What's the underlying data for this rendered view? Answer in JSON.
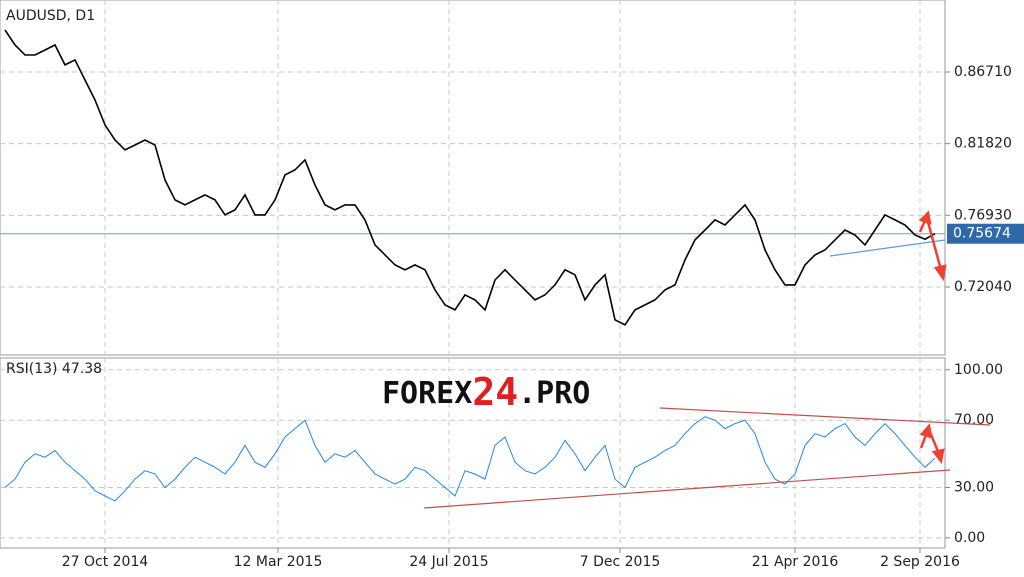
{
  "chart_data": [
    {
      "type": "line",
      "title": "AUDUSD, D1",
      "color": "#000000",
      "grid": true,
      "xlim": [
        -0.5,
        94
      ],
      "ylim": [
        0.674,
        0.9162
      ],
      "yticks": [
        {
          "value": 0.8671,
          "label": "0.86710"
        },
        {
          "value": 0.8182,
          "label": "0.81820"
        },
        {
          "value": 0.7693,
          "label": "0.76930"
        },
        {
          "value": 0.7204,
          "label": "0.72040"
        }
      ],
      "current_price": 0.75674,
      "values": [
        0.8957,
        0.8855,
        0.8787,
        0.8787,
        0.8821,
        0.8855,
        0.8719,
        0.8753,
        0.8616,
        0.848,
        0.831,
        0.8207,
        0.8139,
        0.8173,
        0.8207,
        0.8173,
        0.7934,
        0.7798,
        0.7764,
        0.7798,
        0.7832,
        0.7798,
        0.7696,
        0.773,
        0.7832,
        0.7696,
        0.7696,
        0.7798,
        0.7969,
        0.8003,
        0.8071,
        0.79,
        0.7764,
        0.773,
        0.7764,
        0.7764,
        0.7662,
        0.7491,
        0.7423,
        0.7355,
        0.7321,
        0.7355,
        0.7321,
        0.7184,
        0.7082,
        0.7048,
        0.715,
        0.7116,
        0.7048,
        0.7252,
        0.7321,
        0.7252,
        0.7184,
        0.7116,
        0.715,
        0.7218,
        0.7321,
        0.7287,
        0.7116,
        0.7218,
        0.7287,
        0.698,
        0.6946,
        0.7048,
        0.7082,
        0.7116,
        0.7184,
        0.7218,
        0.7389,
        0.7525,
        0.7593,
        0.7662,
        0.7627,
        0.7696,
        0.7764,
        0.7662,
        0.7457,
        0.7321,
        0.7218,
        0.7218,
        0.7355,
        0.7423,
        0.7457,
        0.7525,
        0.7593,
        0.7559,
        0.7491,
        0.7593,
        0.7696,
        0.7662,
        0.7627,
        0.7559,
        0.753,
        0.75674
      ]
    },
    {
      "type": "line",
      "title": "RSI(13) 47.38",
      "color": "#1e88e5",
      "grid": true,
      "xlim": [
        -0.5,
        94
      ],
      "ylim": [
        -6,
        107
      ],
      "yticks": [
        {
          "value": 100,
          "label": "100.00"
        },
        {
          "value": 70,
          "label": "70.00"
        },
        {
          "value": 30,
          "label": "30.00"
        },
        {
          "value": 0,
          "label": "0.00"
        }
      ],
      "xticks": [
        {
          "value": 10,
          "label": "27 Oct 2014"
        },
        {
          "value": 27.3,
          "label": "12 Mar 2015"
        },
        {
          "value": 44.4,
          "label": "24 Jul 2015"
        },
        {
          "value": 61.5,
          "label": "7 Dec 2015"
        },
        {
          "value": 79,
          "label": "21 Apr 2016"
        },
        {
          "value": 91.5,
          "label": "2 Sep 2016"
        }
      ],
      "values": [
        30,
        35,
        45,
        50,
        48,
        52,
        45,
        40,
        35,
        28,
        25,
        22,
        28,
        35,
        40,
        38,
        30,
        35,
        42,
        48,
        45,
        42,
        38,
        45,
        55,
        45,
        42,
        50,
        60,
        65,
        70,
        55,
        45,
        50,
        48,
        52,
        45,
        38,
        35,
        32,
        35,
        42,
        40,
        35,
        30,
        25,
        40,
        38,
        35,
        55,
        60,
        45,
        40,
        38,
        42,
        48,
        58,
        50,
        40,
        48,
        55,
        35,
        30,
        42,
        45,
        48,
        52,
        55,
        62,
        68,
        72,
        70,
        65,
        68,
        70,
        62,
        45,
        35,
        32,
        38,
        55,
        62,
        60,
        65,
        68,
        60,
        55,
        62,
        68,
        62,
        55,
        48,
        42,
        47.38
      ]
    }
  ],
  "watermark": [
    "FOREX",
    "24",
    ".PRO"
  ]
}
